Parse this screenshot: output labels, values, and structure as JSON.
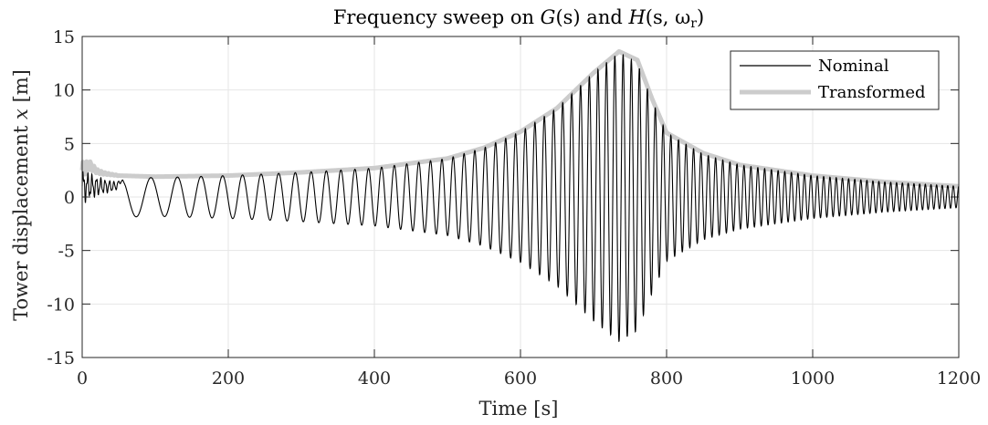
{
  "chart_data": {
    "type": "line",
    "title_parts": {
      "prefix": "Frequency sweep on ",
      "g_func": "G",
      "g_args": "(s)",
      "mid": " and ",
      "h_func": "H",
      "h_args_open": "(s, ω",
      "h_sub": "r",
      "h_args_close": ")"
    },
    "xlabel": "Time [s]",
    "ylabel_prefix": "Tower displacement ",
    "ylabel_var": "x",
    "ylabel_unit": " [m]",
    "xlim": [
      0,
      1200
    ],
    "ylim": [
      -15,
      15
    ],
    "xticks": [
      0,
      200,
      400,
      600,
      800,
      1000,
      1200
    ],
    "yticks": [
      15,
      10,
      5,
      0,
      -5,
      -10,
      -15
    ],
    "xtick_labels": [
      "0",
      "200",
      "400",
      "600",
      "800",
      "1000",
      "1200"
    ],
    "ytick_labels": [
      "15",
      "10",
      "5",
      "0",
      "-5",
      "-10",
      "-15"
    ],
    "grid": true,
    "legend": "top-right",
    "series": [
      {
        "name": "Nominal",
        "color": "#000000",
        "description_points": {
          "envelope_t": [
            0,
            50,
            100,
            200,
            300,
            400,
            500,
            550,
            600,
            650,
            700,
            735,
            760,
            780,
            800,
            850,
            900,
            1000,
            1100,
            1200
          ],
          "envelope_amp": [
            2.0,
            1.9,
            1.8,
            2.0,
            2.3,
            2.7,
            3.6,
            4.6,
            6.1,
            8.3,
            11.6,
            13.5,
            12.5,
            9.0,
            6.0,
            4.0,
            3.0,
            2.0,
            1.4,
            1.0
          ],
          "cycle_count": 100
        }
      },
      {
        "name": "Transformed",
        "color": "#cccccc",
        "envelope_t": [
          0,
          10,
          20,
          30,
          40,
          50,
          100,
          200,
          300,
          400,
          500,
          550,
          600,
          650,
          700,
          735,
          760,
          780,
          800,
          850,
          900,
          1000,
          1100,
          1200
        ],
        "envelope_y": [
          2.5,
          3.0,
          2.4,
          2.2,
          2.1,
          2.0,
          1.9,
          2.0,
          2.3,
          2.7,
          3.6,
          4.6,
          6.1,
          8.3,
          11.6,
          13.6,
          12.8,
          9.2,
          6.0,
          4.1,
          3.0,
          2.0,
          1.4,
          1.0
        ]
      }
    ],
    "legend_labels": {
      "nominal": "Nominal",
      "transformed": "Transformed"
    }
  }
}
